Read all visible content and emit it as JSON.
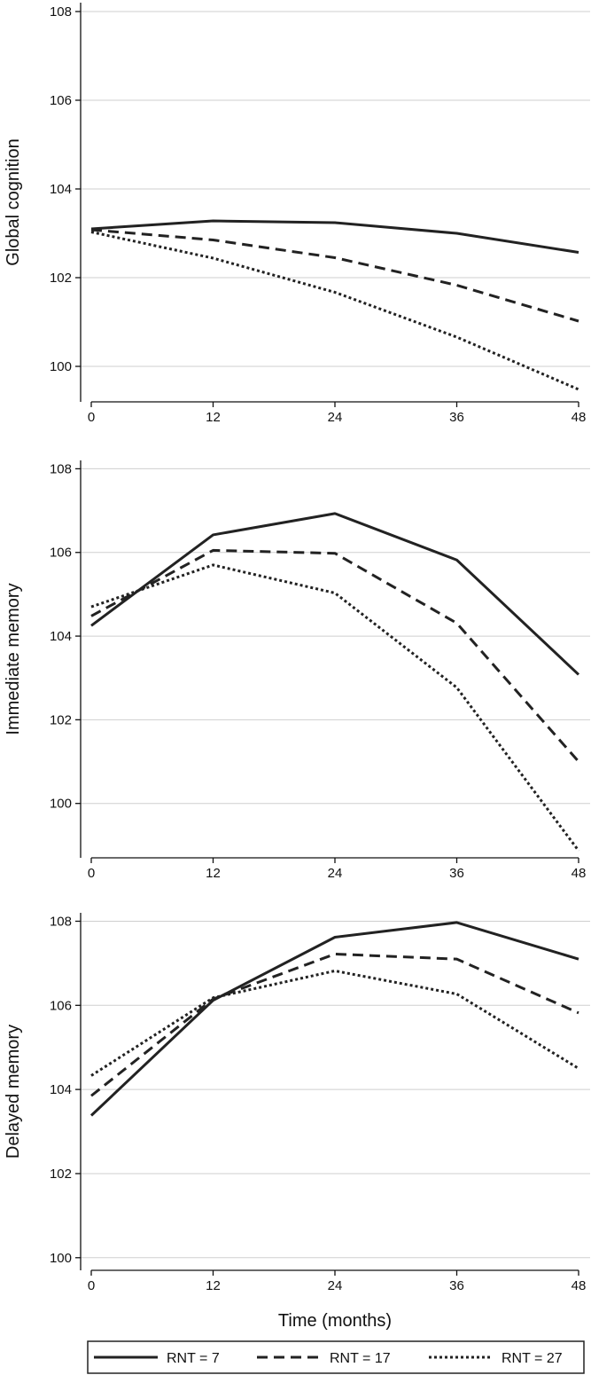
{
  "chart_data": [
    {
      "type": "line",
      "ylabel": "Global cognition",
      "xlabel": "",
      "x": [
        0,
        12,
        24,
        36,
        48
      ],
      "xticks": [
        "0",
        "12",
        "24",
        "36",
        "48"
      ],
      "ylim": [
        99.2,
        108.2
      ],
      "yticks": [
        "100",
        "102",
        "104",
        "106",
        "108"
      ],
      "yticks_values": [
        100,
        102,
        104,
        106,
        108
      ],
      "grid": true,
      "series": [
        {
          "name": "RNT = 7",
          "style": "solid",
          "values": [
            103.1,
            103.28,
            103.24,
            103.0,
            102.57
          ]
        },
        {
          "name": "RNT = 17",
          "style": "dashed",
          "values": [
            103.08,
            102.85,
            102.45,
            101.83,
            101.02
          ]
        },
        {
          "name": "RNT = 27",
          "style": "dotted",
          "values": [
            103.03,
            102.44,
            101.67,
            100.66,
            99.48
          ]
        }
      ]
    },
    {
      "type": "line",
      "ylabel": "Immediate memory",
      "xlabel": "",
      "x": [
        0,
        12,
        24,
        36,
        48
      ],
      "xticks": [
        "0",
        "12",
        "24",
        "36",
        "48"
      ],
      "ylim": [
        98.7,
        108.2
      ],
      "yticks": [
        "100",
        "102",
        "104",
        "106",
        "108"
      ],
      "yticks_values": [
        100,
        102,
        104,
        106,
        108
      ],
      "grid": true,
      "series": [
        {
          "name": "RNT = 7",
          "style": "solid",
          "values": [
            104.25,
            106.42,
            106.93,
            105.82,
            103.08
          ]
        },
        {
          "name": "RNT = 17",
          "style": "dashed",
          "values": [
            104.48,
            106.05,
            105.98,
            104.31,
            101.0
          ]
        },
        {
          "name": "RNT = 27",
          "style": "dotted",
          "values": [
            104.7,
            105.7,
            105.03,
            102.77,
            98.87
          ]
        }
      ]
    },
    {
      "type": "line",
      "ylabel": "Delayed memory",
      "xlabel": "Time (months)",
      "x": [
        0,
        12,
        24,
        36,
        48
      ],
      "xticks": [
        "0",
        "12",
        "24",
        "36",
        "48"
      ],
      "ylim": [
        99.7,
        108.2
      ],
      "yticks": [
        "100",
        "102",
        "104",
        "106",
        "108"
      ],
      "yticks_values": [
        100,
        102,
        104,
        106,
        108
      ],
      "grid": true,
      "series": [
        {
          "name": "RNT = 7",
          "style": "solid",
          "values": [
            103.38,
            106.12,
            107.62,
            107.97,
            107.1
          ]
        },
        {
          "name": "RNT = 17",
          "style": "dashed",
          "values": [
            103.85,
            106.15,
            107.22,
            107.1,
            105.82
          ]
        },
        {
          "name": "RNT = 27",
          "style": "dotted",
          "values": [
            104.33,
            106.18,
            106.82,
            106.27,
            104.5
          ]
        }
      ]
    }
  ],
  "legend": {
    "placement": "bottom",
    "items": [
      {
        "label": "RNT = 7",
        "style": "solid"
      },
      {
        "label": "RNT = 17",
        "style": "dashed"
      },
      {
        "label": "RNT = 27",
        "style": "dotted"
      }
    ]
  },
  "colors": {
    "line": "#222222",
    "grid": "#cfcfcf",
    "axis": "#111111"
  }
}
